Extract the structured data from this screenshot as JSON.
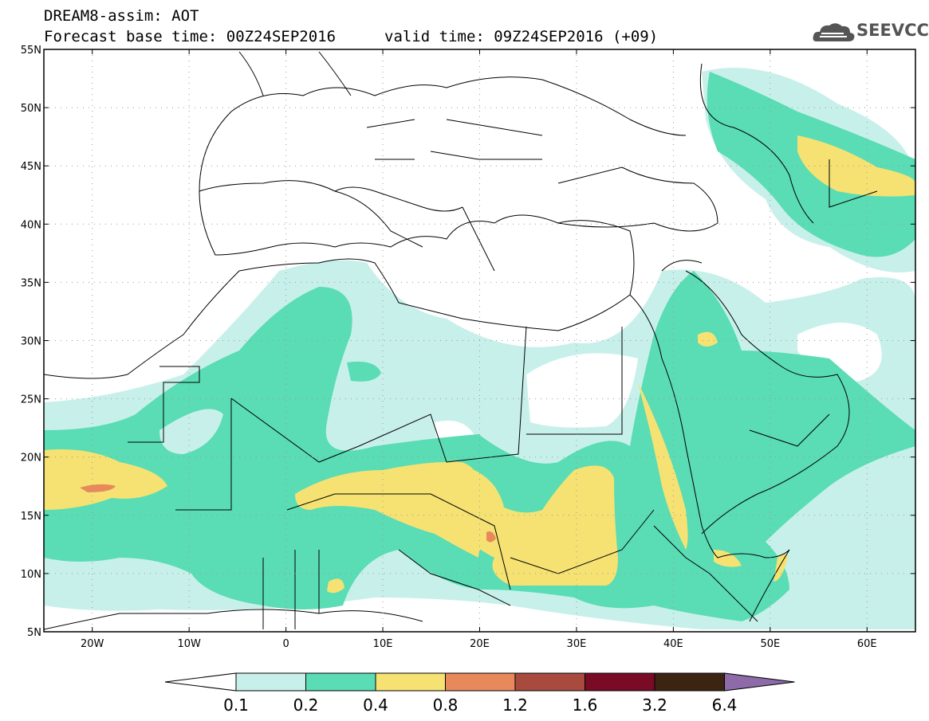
{
  "header": {
    "product": "DREAM8-assim: AOT",
    "base_time": "Forecast base time: 00Z24SEP2016",
    "valid_time": "valid time: 09Z24SEP2016 (+09)",
    "logo": "SEEVCCC"
  },
  "map": {
    "lat_ticks": [
      "55N",
      "50N",
      "45N",
      "40N",
      "35N",
      "30N",
      "25N",
      "20N",
      "15N",
      "10N",
      "5N"
    ],
    "lon_ticks": [
      "20W",
      "10W",
      "0",
      "10E",
      "20E",
      "30E",
      "40E",
      "50E",
      "60E"
    ],
    "extent": {
      "lon": [
        -25,
        65
      ],
      "lat": [
        5,
        55
      ]
    }
  },
  "legend": {
    "labels": [
      "0.1",
      "0.2",
      "0.4",
      "0.8",
      "1.2",
      "1.6",
      "3.2",
      "6.4"
    ],
    "colors": [
      "#ffffff",
      "#c8f0ea",
      "#5adcb4",
      "#f5e273",
      "#e8895c",
      "#a84b3e",
      "#7a0b26",
      "#3c2413",
      "#8d6aa8"
    ]
  },
  "colors": {
    "aot_0_1": "#c8f0ea",
    "aot_0_2": "#5adcb4",
    "aot_0_4": "#f5e273",
    "aot_0_8": "#e8895c"
  }
}
